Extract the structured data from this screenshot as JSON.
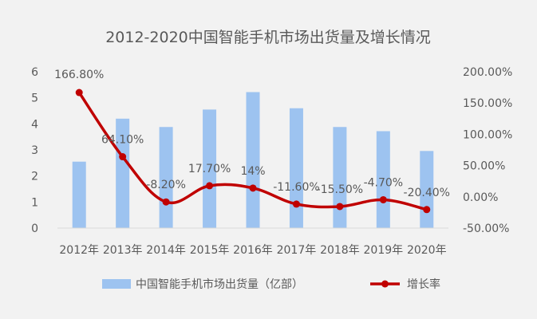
{
  "chart_data": {
    "type": "bar",
    "title": "2012-2020中国智能手机市场出货量及增长情况",
    "categories": [
      "2012年",
      "2013年",
      "2014年",
      "2015年",
      "2016年",
      "2017年",
      "2018年",
      "2019年",
      "2020年"
    ],
    "series": [
      {
        "name": "中国智能手机市场出货量（亿部）",
        "type": "bar",
        "axis": "left",
        "color": "#9dc3f0",
        "values": [
          2.55,
          4.2,
          3.88,
          4.55,
          5.22,
          4.6,
          3.88,
          3.72,
          2.96
        ]
      },
      {
        "name": "增长率",
        "type": "line",
        "axis": "right",
        "color": "#c00000",
        "values": [
          166.8,
          64.1,
          -8.2,
          17.7,
          14,
          -11.6,
          -15.5,
          -4.7,
          -20.4
        ],
        "labels": [
          "166.80%",
          "64.10%",
          "-8.20%",
          "17.70%",
          "14%",
          "-11.60%",
          "-15.50%",
          "-4.70%",
          "-20.40%"
        ]
      }
    ],
    "y_left": {
      "min": 0,
      "max": 6,
      "ticks": [
        "0",
        "1",
        "2",
        "3",
        "4",
        "5",
        "6"
      ]
    },
    "y_right": {
      "min": -50,
      "max": 200,
      "ticks": [
        "-50.00%",
        "0.00%",
        "50.00%",
        "100.00%",
        "150.00%",
        "200.00%"
      ]
    },
    "grid": false,
    "legend_position": "bottom"
  }
}
